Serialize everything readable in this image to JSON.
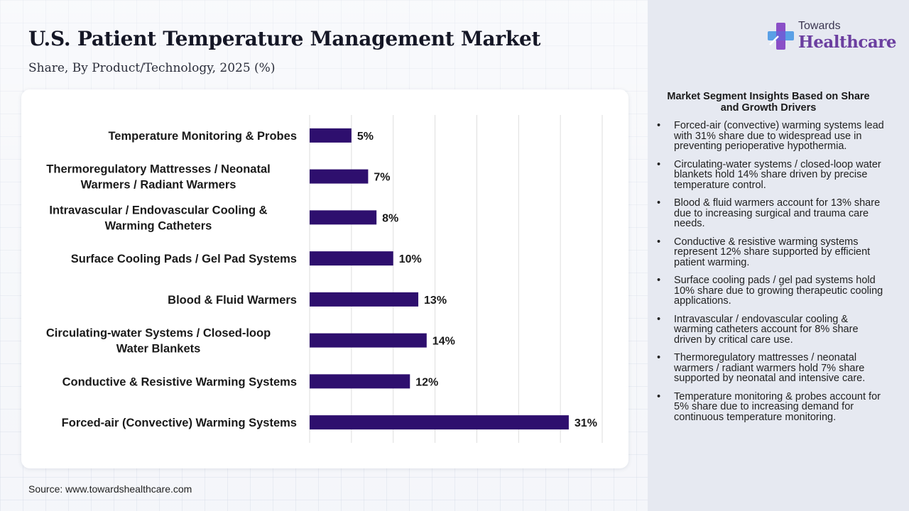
{
  "header": {
    "title": "U.S. Patient Temperature Management Market",
    "subtitle": "Share, By Product/Technology, 2025 (%)"
  },
  "logo": {
    "top_text": "Towards",
    "main_text": "Healthcare"
  },
  "chart_data": {
    "type": "bar",
    "orientation": "horizontal",
    "categories": [
      "Temperature Monitoring & Probes",
      "Thermoregulatory Mattresses / Neonatal Warmers / Radiant Warmers",
      "Intravascular / Endovascular Cooling & Warming Catheters",
      "Surface Cooling Pads / Gel Pad Systems",
      "Blood & Fluid Warmers",
      "Circulating-water Systems / Closed-loop Water Blankets",
      "Conductive & Resistive Warming Systems",
      "Forced-air (Convective) Warming Systems"
    ],
    "category_lines": [
      [
        "Temperature Monitoring & Probes"
      ],
      [
        "Thermoregulatory Mattresses / Neonatal",
        "Warmers / Radiant Warmers"
      ],
      [
        "Intravascular / Endovascular Cooling &",
        "Warming Catheters"
      ],
      [
        "Surface Cooling Pads / Gel Pad Systems"
      ],
      [
        "Blood & Fluid Warmers"
      ],
      [
        "Circulating-water Systems / Closed-loop",
        "Water Blankets"
      ],
      [
        "Conductive & Resistive Warming Systems"
      ],
      [
        "Forced-air (Convective) Warming Systems"
      ]
    ],
    "values": [
      5,
      7,
      8,
      10,
      13,
      14,
      12,
      31
    ],
    "value_labels": [
      "5%",
      "7%",
      "8%",
      "10%",
      "13%",
      "14%",
      "12%",
      "31%"
    ],
    "unit": "%",
    "xlim": [
      0,
      35
    ],
    "grid_step": 5,
    "grid": true,
    "bar_color": "#2e0f6e",
    "title": "U.S. Patient Temperature Management Market",
    "xlabel": "",
    "ylabel": ""
  },
  "insights": {
    "title": "Market Segment Insights Based on Share and Growth Drivers",
    "items": [
      "Forced-air (convective) warming systems lead with 31% share due to widespread use in preventing perioperative hypothermia.",
      "Circulating-water systems / closed-loop water blankets hold 14% share driven by precise temperature control.",
      "Blood & fluid warmers account for 13% share due to increasing surgical and trauma care needs.",
      "Conductive & resistive warming systems represent 12% share supported by efficient patient warming.",
      "Surface cooling pads / gel pad systems hold 10% share due to growing therapeutic cooling applications.",
      "Intravascular / endovascular cooling & warming catheters account for 8% share driven by critical care use.",
      "Thermoregulatory mattresses / neonatal warmers / radiant warmers hold 7% share supported by neonatal and intensive care.",
      "Temperature monitoring & probes account for 5% share due to increasing demand for continuous temperature monitoring."
    ]
  },
  "footer": {
    "source": "Source: www.towardshealthcare.com"
  }
}
